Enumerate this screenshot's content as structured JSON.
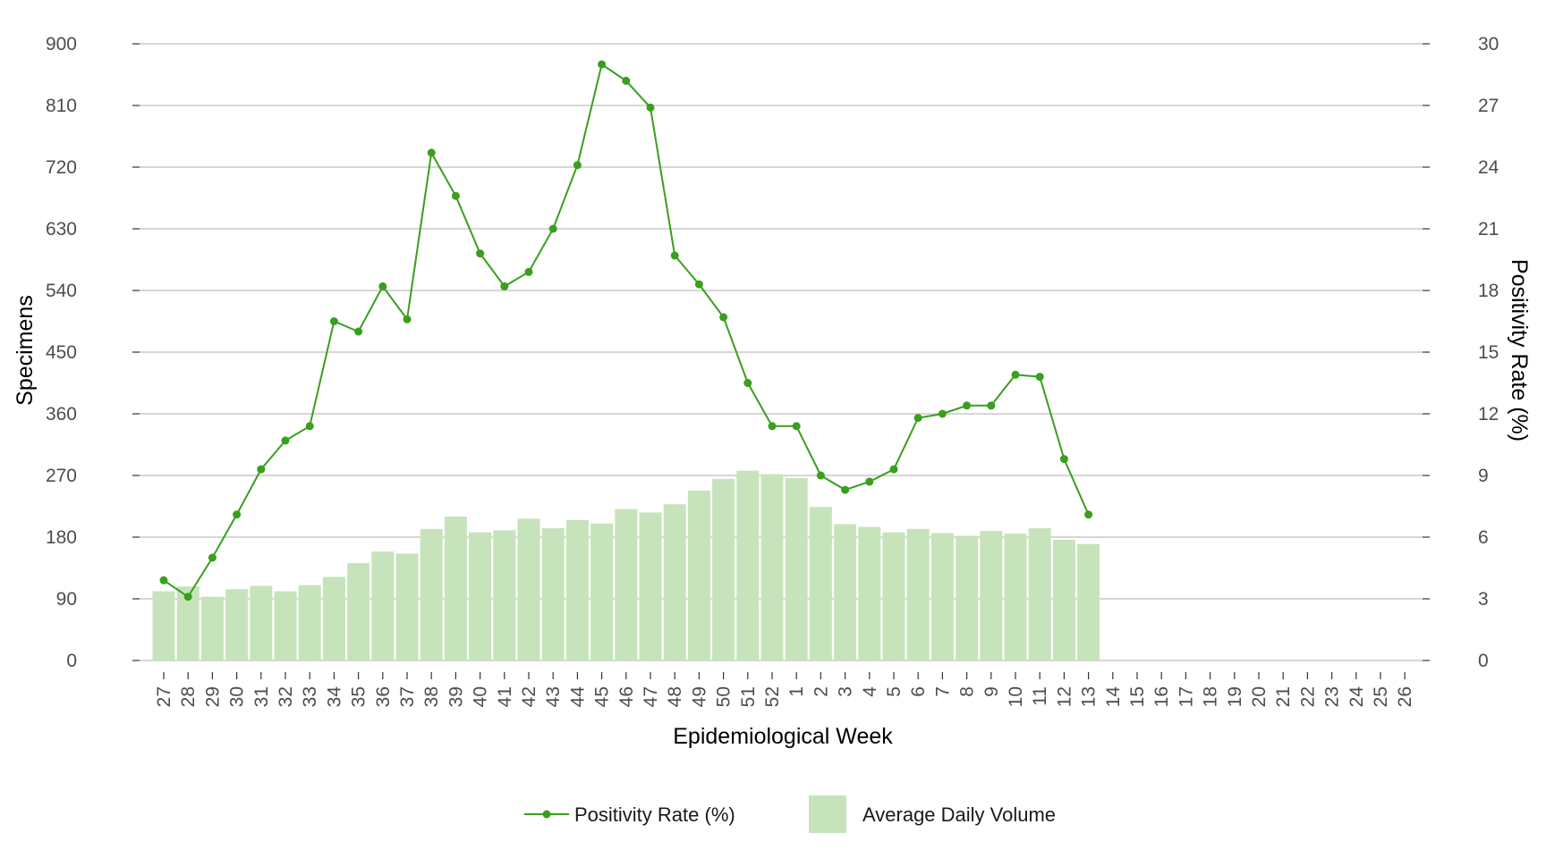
{
  "chart_data": {
    "type": "bar",
    "xlabel": "Epidemiological Week",
    "ylabel_left": "Specimens",
    "ylabel_right": "Positivity Rate (%)",
    "categories": [
      "27",
      "28",
      "29",
      "30",
      "31",
      "32",
      "33",
      "34",
      "35",
      "36",
      "37",
      "38",
      "39",
      "40",
      "41",
      "42",
      "43",
      "44",
      "45",
      "46",
      "47",
      "48",
      "49",
      "50",
      "51",
      "52",
      "1",
      "2",
      "3",
      "4",
      "5",
      "6",
      "7",
      "8",
      "9",
      "10",
      "11",
      "12",
      "13",
      "14",
      "15",
      "16",
      "17",
      "18",
      "19",
      "20",
      "21",
      "22",
      "23",
      "24",
      "25",
      "26"
    ],
    "y_left": {
      "ylim": [
        0,
        900
      ],
      "ticks": [
        "0",
        "90",
        "180",
        "270",
        "360",
        "450",
        "540",
        "630",
        "720",
        "810",
        "900"
      ]
    },
    "y_right": {
      "ylim": [
        0,
        30
      ],
      "ticks": [
        "0",
        "3",
        "6",
        "9",
        "12",
        "15",
        "18",
        "21",
        "24",
        "27",
        "30"
      ]
    },
    "grid": true,
    "legend_position": "bottom",
    "series": [
      {
        "name": "Positivity Rate (%)",
        "type": "line",
        "axis": "right",
        "color": "#3a9e1e",
        "values": [
          3.9,
          3.1,
          5.0,
          7.1,
          9.3,
          10.7,
          11.4,
          16.5,
          16.0,
          18.2,
          16.6,
          24.7,
          22.6,
          19.8,
          18.2,
          18.9,
          21.0,
          24.1,
          29.0,
          28.2,
          26.9,
          19.7,
          18.3,
          16.7,
          13.5,
          11.4,
          11.4,
          9.0,
          8.3,
          8.7,
          9.3,
          11.8,
          12.0,
          12.4,
          12.4,
          13.9,
          13.8,
          9.8,
          7.1,
          null,
          null,
          null,
          null,
          null,
          null,
          null,
          null,
          null,
          null,
          null,
          null,
          null
        ]
      },
      {
        "name": "Average Daily Volume",
        "type": "bar",
        "axis": "left",
        "color": "#c7e3bb",
        "values": [
          101,
          108,
          93,
          104,
          109,
          101,
          110,
          122,
          142,
          159,
          156,
          192,
          210,
          187,
          190,
          207,
          193,
          205,
          200,
          221,
          216,
          228,
          248,
          265,
          277,
          272,
          266,
          224,
          199,
          195,
          187,
          192,
          186,
          182,
          189,
          185,
          193,
          176,
          170,
          null,
          null,
          null,
          null,
          null,
          null,
          null,
          null,
          null,
          null,
          null,
          null,
          null
        ]
      }
    ]
  }
}
